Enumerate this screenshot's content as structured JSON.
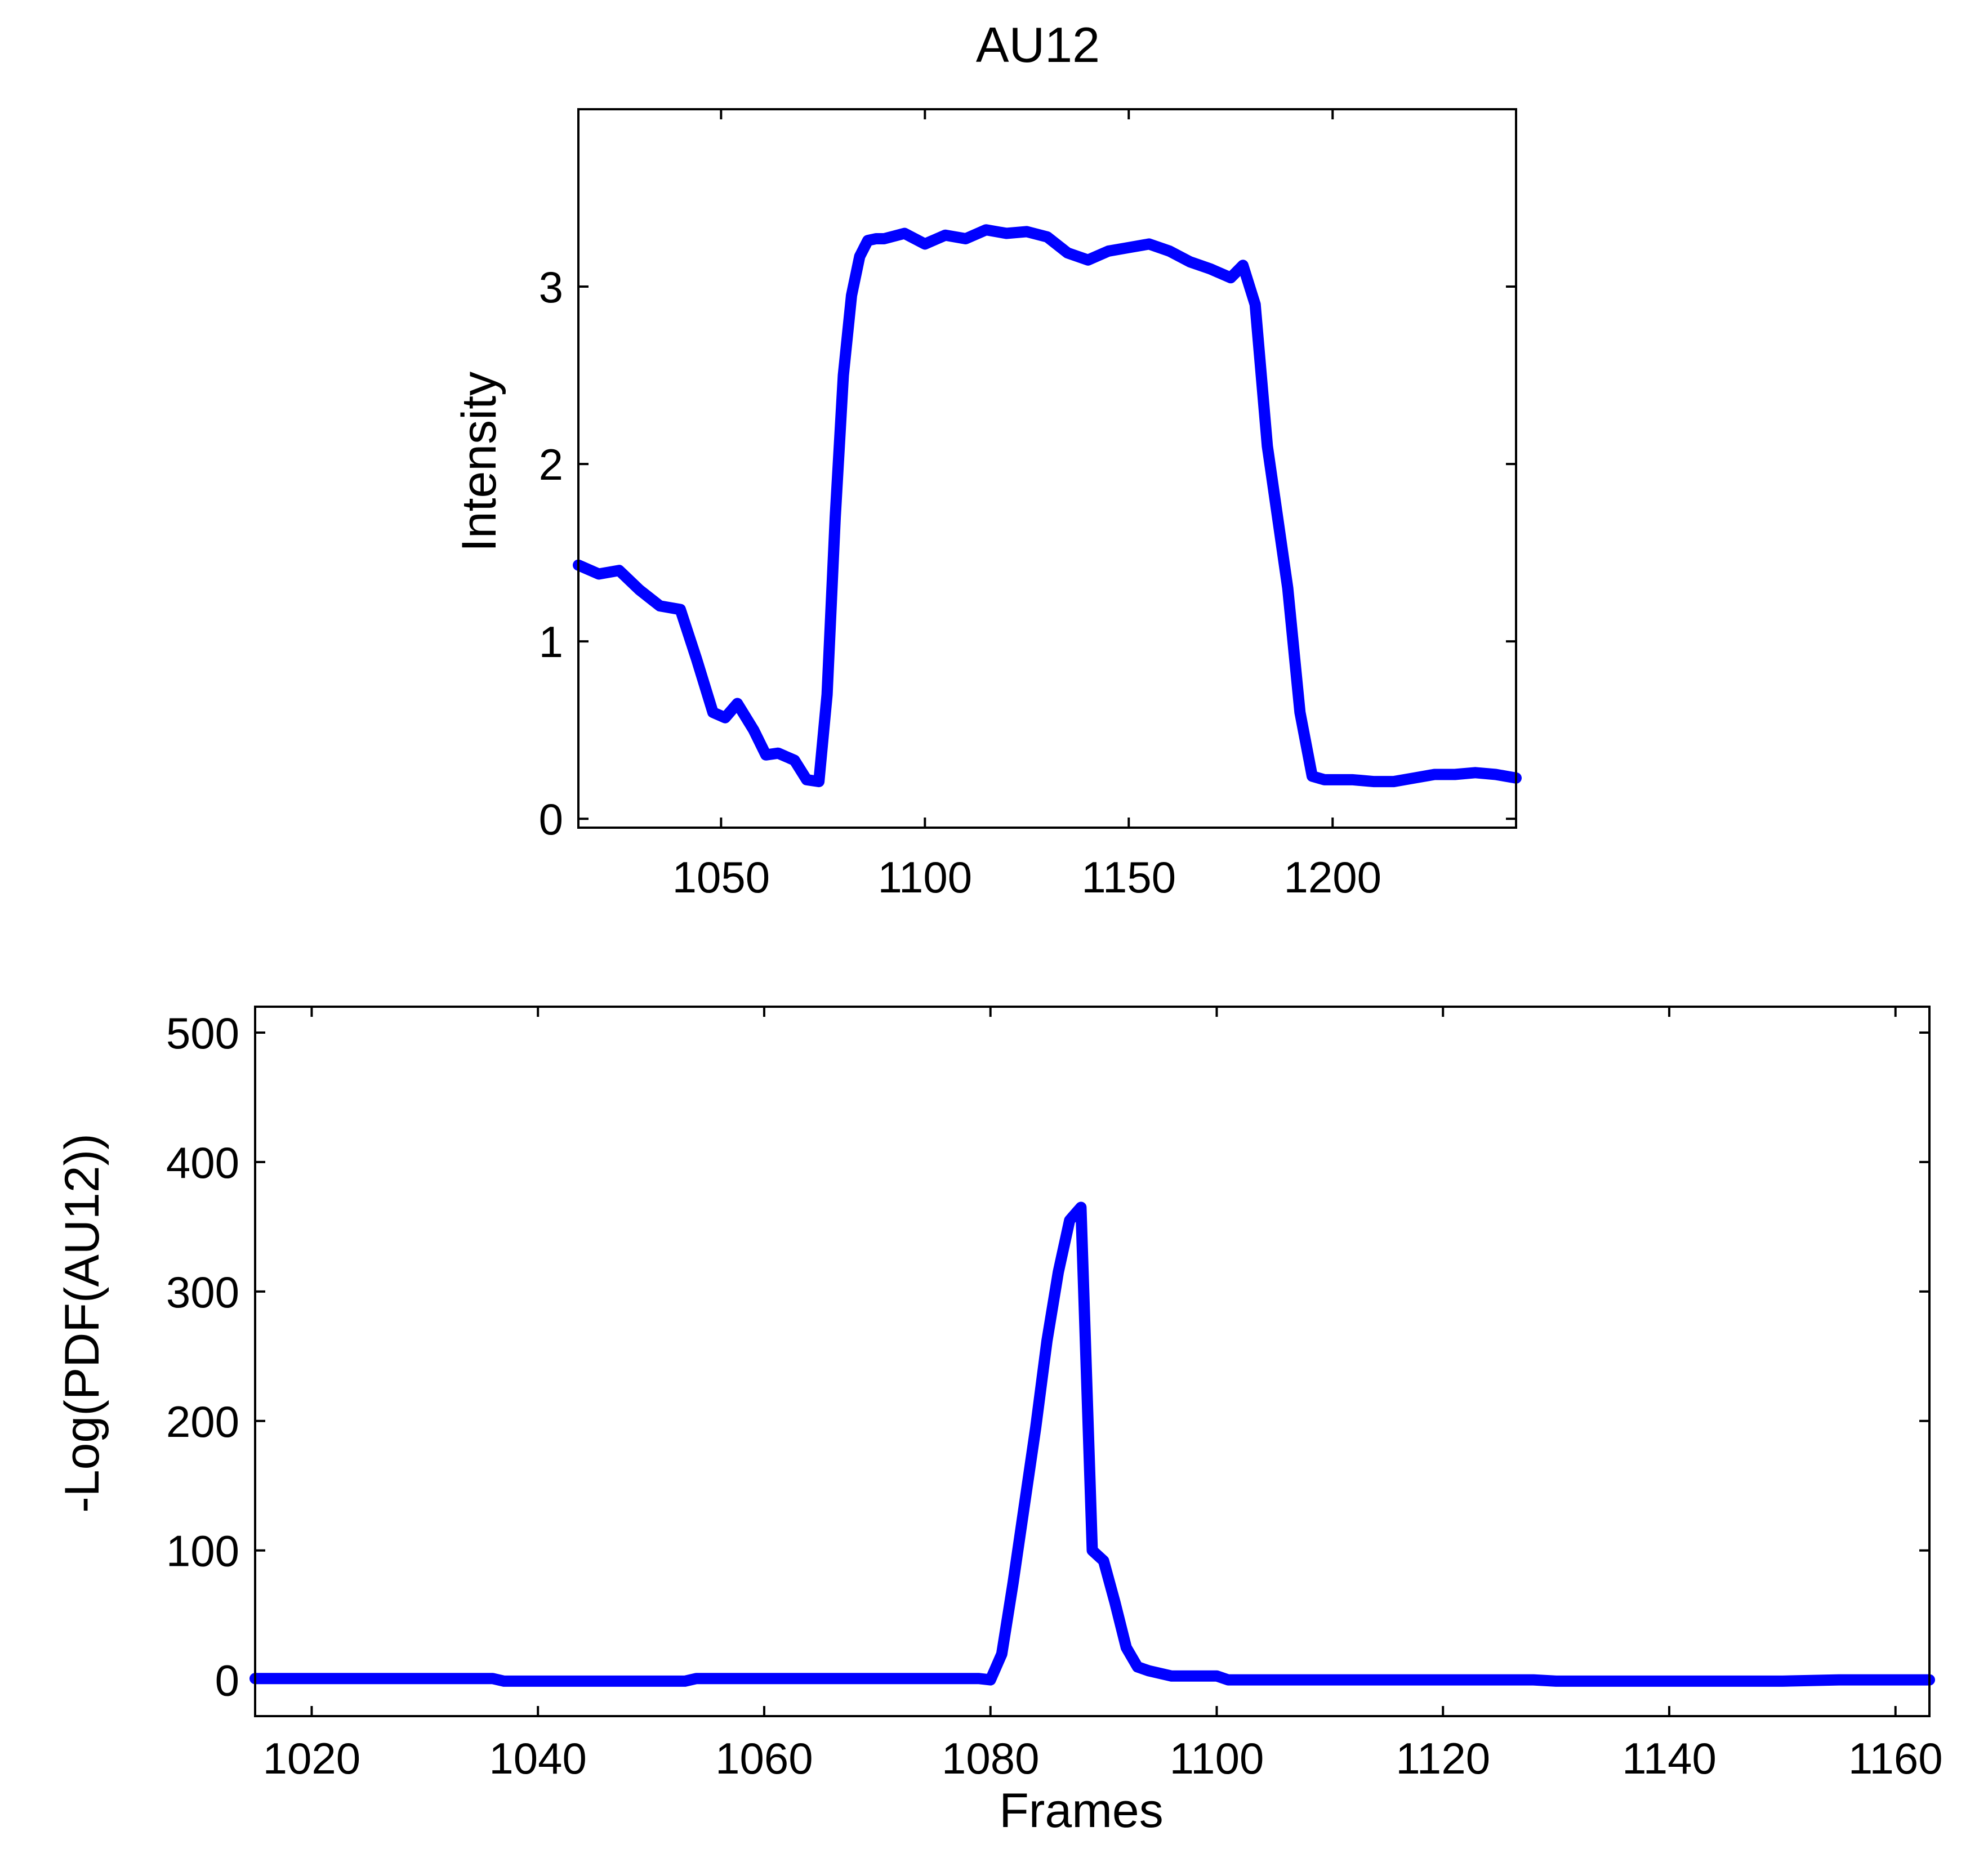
{
  "chart_data": [
    {
      "type": "line",
      "title": "AU12",
      "xlabel": "",
      "ylabel": "Intensity",
      "xlim": [
        1015,
        1245
      ],
      "ylim": [
        -0.05,
        4.0
      ],
      "xticks": [
        1050,
        1100,
        1150,
        1200
      ],
      "yticks": [
        0,
        1,
        2,
        3
      ],
      "grid": false,
      "color": "#0000ff",
      "series": [
        {
          "x": [
            1015,
            1020,
            1025,
            1030,
            1035,
            1040,
            1044,
            1048,
            1051,
            1054,
            1058,
            1061,
            1064,
            1068,
            1071,
            1074,
            1076,
            1078,
            1080,
            1082,
            1084,
            1086,
            1088,
            1090,
            1095,
            1100,
            1105,
            1110,
            1115,
            1120,
            1125,
            1130,
            1135,
            1140,
            1145,
            1150,
            1155,
            1160,
            1165,
            1170,
            1175,
            1178,
            1181,
            1184,
            1186,
            1189,
            1192,
            1195,
            1198,
            1200,
            1205,
            1210,
            1215,
            1220,
            1225,
            1230,
            1235,
            1240,
            1245
          ],
          "y": [
            1.43,
            1.38,
            1.4,
            1.29,
            1.2,
            1.18,
            0.9,
            0.6,
            0.57,
            0.65,
            0.5,
            0.36,
            0.37,
            0.33,
            0.22,
            0.21,
            0.7,
            1.7,
            2.5,
            2.95,
            3.17,
            3.26,
            3.27,
            3.27,
            3.3,
            3.24,
            3.29,
            3.27,
            3.32,
            3.3,
            3.31,
            3.28,
            3.19,
            3.15,
            3.2,
            3.22,
            3.24,
            3.2,
            3.14,
            3.1,
            3.05,
            3.12,
            2.9,
            2.1,
            1.78,
            1.3,
            0.6,
            0.24,
            0.22,
            0.22,
            0.22,
            0.21,
            0.21,
            0.23,
            0.25,
            0.25,
            0.26,
            0.25,
            0.23
          ]
        }
      ]
    },
    {
      "type": "line",
      "title": "",
      "xlabel": "Frames",
      "ylabel": "-Log(PDF(AU12))",
      "xlim": [
        1015,
        1163
      ],
      "ylim": [
        -28,
        520
      ],
      "xticks": [
        1020,
        1040,
        1060,
        1080,
        1100,
        1120,
        1140,
        1160
      ],
      "yticks": [
        0,
        100,
        200,
        300,
        400,
        500
      ],
      "grid": false,
      "color": "#0000ff",
      "series": [
        {
          "x": [
            1015,
            1036,
            1037,
            1053,
            1054,
            1070,
            1079,
            1080,
            1081,
            1082,
            1083,
            1084,
            1085,
            1086,
            1087,
            1088,
            1089,
            1090,
            1091,
            1092,
            1093,
            1094,
            1096,
            1098,
            1100,
            1101,
            1110,
            1128,
            1130,
            1148,
            1150,
            1155,
            1163
          ],
          "y": [
            1,
            1,
            -1,
            -1,
            1,
            1,
            1,
            0,
            20,
            75,
            135,
            195,
            262,
            315,
            355,
            365,
            100,
            92,
            60,
            25,
            10,
            7,
            3,
            3,
            3,
            0,
            0,
            0,
            -1,
            -1,
            -1,
            0,
            0
          ]
        }
      ]
    }
  ]
}
